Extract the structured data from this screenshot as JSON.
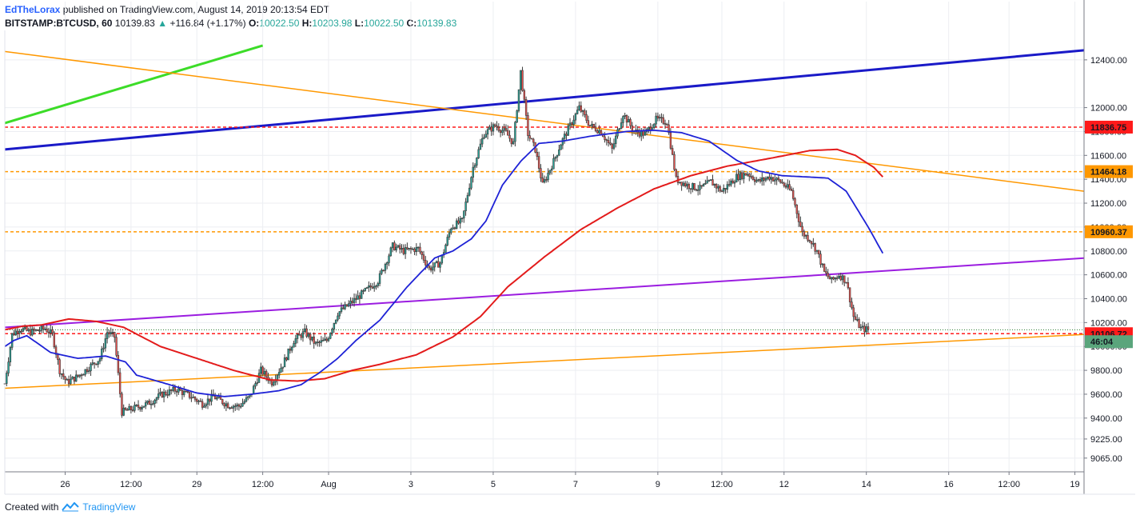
{
  "header": {
    "author": "EdTheLorax",
    "published": "published on TradingView.com, August 14, 2019 20:13:54 EDT",
    "symbol": "BITSTAMP:BTCUSD, 60",
    "last": "10139.83",
    "change": "+116.84 (+1.17%)",
    "o_label": "O:",
    "o": "10022.50",
    "h_label": "H:",
    "h": "10203.98",
    "l_label": "L:",
    "l": "10022.50",
    "c_label": "C:",
    "c": "10139.83"
  },
  "footer": {
    "created_with": "Created with",
    "brand": "TradingView",
    "logo_icon": "tradingview-logo-icon"
  },
  "colors": {
    "up": "#26a69a",
    "down": "#ef5350",
    "candle": "#3b3b3b",
    "ma_fast": "#1e22d6",
    "ma_slow": "#e31b1b",
    "blue_trend": "#1a1ac8",
    "green_trend": "#3cdc28",
    "orange_trend": "#ff9800",
    "purple_trend": "#9b1de0",
    "red_level": "#ff1a1a",
    "orange_level": "#ff9800"
  },
  "chart_data": {
    "type": "candlestick",
    "symbol": "BITSTAMP:BTCUSD",
    "interval": "60",
    "ylim": [
      8950,
      12620
    ],
    "y_ticks": [
      9065,
      9225,
      9400,
      9600,
      9800,
      10000,
      10200,
      10400,
      10600,
      10800,
      11000,
      11200,
      11400,
      11600,
      11800,
      12000,
      12400
    ],
    "y_tick_labels": [
      "9065.00",
      "9225.00",
      "9400.00",
      "9600.00",
      "9800.00",
      "10000.00",
      "10200.00",
      "10400.00",
      "10600.00",
      "10800.00",
      "11000.00",
      "11200.00",
      "11400.00",
      "11600.00",
      "11800.00",
      "12000.00",
      "12400.00"
    ],
    "xlim": [
      0,
      590
    ],
    "x_ticks": [
      {
        "t": 33,
        "label": "26"
      },
      {
        "t": 69,
        "label": "12:00"
      },
      {
        "t": 105,
        "label": "29"
      },
      {
        "t": 141,
        "label": "12:00"
      },
      {
        "t": 177,
        "label": "Aug"
      },
      {
        "t": 222,
        "label": "3"
      },
      {
        "t": 267,
        "label": "5"
      },
      {
        "t": 312,
        "label": "7"
      },
      {
        "t": 357,
        "label": "9"
      },
      {
        "t": 392,
        "label": "12:00"
      },
      {
        "t": 426,
        "label": "12"
      },
      {
        "t": 471,
        "label": "14"
      },
      {
        "t": 516,
        "label": "16"
      },
      {
        "t": 549,
        "label": "12:00"
      },
      {
        "t": 585,
        "label": "19"
      }
    ],
    "horizontal_levels": [
      {
        "price": 11836.75,
        "label": "11836.75",
        "style": "red"
      },
      {
        "price": 11464.18,
        "label": "11464.18",
        "style": "orange"
      },
      {
        "price": 10960.37,
        "label": "10960.37",
        "style": "orange"
      },
      {
        "price": 10106.72,
        "label": "10106.72",
        "style": "red"
      }
    ],
    "price_badge": {
      "price": 10040,
      "label": "46:04"
    },
    "trendlines": [
      {
        "name": "blue",
        "t1": 0,
        "p1": 11650,
        "t2": 590,
        "p2": 12480,
        "width": 3
      },
      {
        "name": "green",
        "t1": 0,
        "p1": 11870,
        "t2": 141,
        "p2": 12520,
        "width": 3
      },
      {
        "name": "orange",
        "t1": 0,
        "p1": 12470,
        "t2": 590,
        "p2": 11300,
        "width": 1.5
      },
      {
        "name": "orange",
        "t1": 0,
        "p1": 9650,
        "t2": 590,
        "p2": 10100,
        "width": 1.5
      },
      {
        "name": "purple",
        "t1": 0,
        "p1": 10160,
        "t2": 590,
        "p2": 10740,
        "width": 2
      }
    ],
    "ma_fast_keys": [
      [
        0,
        10000
      ],
      [
        5,
        10050
      ],
      [
        12,
        10090
      ],
      [
        25,
        9950
      ],
      [
        40,
        9900
      ],
      [
        55,
        9920
      ],
      [
        66,
        9870
      ],
      [
        72,
        9760
      ],
      [
        90,
        9680
      ],
      [
        105,
        9610
      ],
      [
        120,
        9580
      ],
      [
        135,
        9600
      ],
      [
        150,
        9630
      ],
      [
        162,
        9680
      ],
      [
        172,
        9780
      ],
      [
        182,
        9900
      ],
      [
        192,
        10050
      ],
      [
        205,
        10220
      ],
      [
        220,
        10500
      ],
      [
        235,
        10740
      ],
      [
        245,
        10800
      ],
      [
        255,
        10900
      ],
      [
        263,
        11050
      ],
      [
        272,
        11350
      ],
      [
        282,
        11550
      ],
      [
        292,
        11700
      ],
      [
        305,
        11720
      ],
      [
        320,
        11760
      ],
      [
        340,
        11800
      ],
      [
        355,
        11810
      ],
      [
        370,
        11790
      ],
      [
        385,
        11720
      ],
      [
        400,
        11560
      ],
      [
        412,
        11470
      ],
      [
        425,
        11430
      ],
      [
        438,
        11420
      ],
      [
        450,
        11410
      ],
      [
        460,
        11300
      ],
      [
        472,
        11000
      ],
      [
        480,
        10780
      ]
    ],
    "ma_slow_keys": [
      [
        0,
        10140
      ],
      [
        10,
        10170
      ],
      [
        20,
        10180
      ],
      [
        35,
        10230
      ],
      [
        50,
        10210
      ],
      [
        65,
        10160
      ],
      [
        85,
        10000
      ],
      [
        105,
        9900
      ],
      [
        125,
        9800
      ],
      [
        145,
        9720
      ],
      [
        160,
        9710
      ],
      [
        175,
        9730
      ],
      [
        190,
        9800
      ],
      [
        205,
        9850
      ],
      [
        225,
        9930
      ],
      [
        245,
        10080
      ],
      [
        260,
        10250
      ],
      [
        275,
        10500
      ],
      [
        295,
        10750
      ],
      [
        315,
        10980
      ],
      [
        335,
        11160
      ],
      [
        355,
        11320
      ],
      [
        375,
        11430
      ],
      [
        395,
        11510
      ],
      [
        420,
        11580
      ],
      [
        440,
        11640
      ],
      [
        455,
        11650
      ],
      [
        465,
        11600
      ],
      [
        475,
        11500
      ],
      [
        480,
        11420
      ]
    ],
    "candles_note": "hourly OHLC candles 2019-07-25 to 2019-08-14 (approximate)",
    "candle_keys": [
      [
        0,
        9690
      ],
      [
        4,
        10100
      ],
      [
        8,
        10150
      ],
      [
        14,
        10120
      ],
      [
        22,
        10150
      ],
      [
        26,
        10100
      ],
      [
        30,
        9800
      ],
      [
        34,
        9700
      ],
      [
        40,
        9750
      ],
      [
        48,
        9850
      ],
      [
        52,
        9900
      ],
      [
        56,
        10120
      ],
      [
        60,
        10080
      ],
      [
        64,
        9450
      ],
      [
        70,
        9480
      ],
      [
        78,
        9520
      ],
      [
        86,
        9600
      ],
      [
        94,
        9640
      ],
      [
        102,
        9580
      ],
      [
        108,
        9520
      ],
      [
        114,
        9580
      ],
      [
        122,
        9510
      ],
      [
        128,
        9500
      ],
      [
        134,
        9580
      ],
      [
        140,
        9800
      ],
      [
        146,
        9700
      ],
      [
        152,
        9850
      ],
      [
        158,
        10050
      ],
      [
        164,
        10120
      ],
      [
        170,
        10020
      ],
      [
        176,
        10050
      ],
      [
        182,
        10280
      ],
      [
        188,
        10350
      ],
      [
        196,
        10450
      ],
      [
        204,
        10550
      ],
      [
        212,
        10840
      ],
      [
        218,
        10800
      ],
      [
        226,
        10820
      ],
      [
        232,
        10650
      ],
      [
        238,
        10700
      ],
      [
        244,
        11000
      ],
      [
        250,
        11050
      ],
      [
        256,
        11500
      ],
      [
        262,
        11780
      ],
      [
        268,
        11850
      ],
      [
        274,
        11790
      ],
      [
        278,
        11700
      ],
      [
        282,
        12300
      ],
      [
        286,
        11780
      ],
      [
        290,
        11650
      ],
      [
        294,
        11350
      ],
      [
        300,
        11550
      ],
      [
        304,
        11700
      ],
      [
        308,
        11820
      ],
      [
        314,
        12000
      ],
      [
        320,
        11850
      ],
      [
        326,
        11800
      ],
      [
        332,
        11650
      ],
      [
        338,
        11950
      ],
      [
        344,
        11800
      ],
      [
        350,
        11780
      ],
      [
        356,
        11900
      ],
      [
        362,
        11880
      ],
      [
        367,
        11400
      ],
      [
        373,
        11350
      ],
      [
        380,
        11320
      ],
      [
        386,
        11380
      ],
      [
        392,
        11300
      ],
      [
        400,
        11420
      ],
      [
        406,
        11450
      ],
      [
        412,
        11380
      ],
      [
        418,
        11420
      ],
      [
        424,
        11380
      ],
      [
        430,
        11300
      ],
      [
        436,
        10950
      ],
      [
        440,
        10900
      ],
      [
        444,
        10800
      ],
      [
        448,
        10620
      ],
      [
        452,
        10550
      ],
      [
        456,
        10600
      ],
      [
        460,
        10550
      ],
      [
        464,
        10250
      ],
      [
        468,
        10150
      ],
      [
        472,
        10140
      ]
    ]
  }
}
